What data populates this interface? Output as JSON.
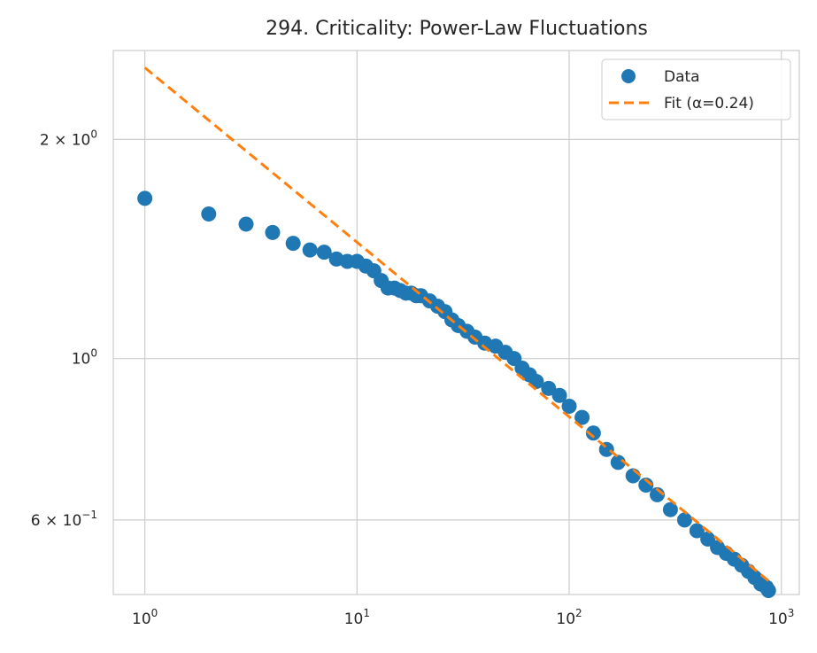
{
  "chart_data": {
    "type": "scatter",
    "title": "294. Criticality: Power-Law Fluctuations",
    "xlabel": "",
    "ylabel": "",
    "xscale": "log",
    "yscale": "log",
    "xlim": [
      0.71,
      1215
    ],
    "ylim": [
      0.474,
      2.65
    ],
    "grid": true,
    "legend_position": "top-right",
    "x_ticks": [
      {
        "value": 1,
        "base": "10",
        "exp": "0"
      },
      {
        "value": 10,
        "base": "10",
        "exp": "1"
      },
      {
        "value": 100,
        "base": "10",
        "exp": "2"
      },
      {
        "value": 1000,
        "base": "10",
        "exp": "3"
      }
    ],
    "y_ticks": [
      {
        "value": 2,
        "mant": "2",
        "exp": "0"
      },
      {
        "value": 1,
        "mant": "",
        "exp": "0"
      },
      {
        "value": 0.6,
        "mant": "6",
        "exp": "−1"
      }
    ],
    "series": [
      {
        "name": "Data",
        "kind": "markers",
        "color": "#1f77b4",
        "x": [
          1,
          2,
          3,
          4,
          5,
          6,
          7,
          8,
          9,
          10,
          11,
          12,
          13,
          14,
          15,
          16,
          17,
          18,
          19,
          20,
          22,
          24,
          26,
          28,
          30,
          33,
          36,
          40,
          45,
          50,
          55,
          60,
          65,
          70,
          80,
          90,
          100,
          115,
          130,
          150,
          170,
          200,
          230,
          260,
          300,
          350,
          400,
          450,
          500,
          550,
          600,
          650,
          700,
          750,
          800,
          850,
          870
        ],
        "y": [
          1.66,
          1.58,
          1.53,
          1.49,
          1.44,
          1.41,
          1.4,
          1.37,
          1.36,
          1.36,
          1.34,
          1.32,
          1.28,
          1.25,
          1.25,
          1.24,
          1.23,
          1.23,
          1.22,
          1.22,
          1.2,
          1.18,
          1.16,
          1.13,
          1.11,
          1.09,
          1.07,
          1.05,
          1.04,
          1.02,
          1.0,
          0.97,
          0.95,
          0.93,
          0.91,
          0.89,
          0.86,
          0.83,
          0.79,
          0.75,
          0.72,
          0.69,
          0.67,
          0.65,
          0.62,
          0.6,
          0.58,
          0.565,
          0.55,
          0.54,
          0.53,
          0.52,
          0.51,
          0.5,
          0.49,
          0.485,
          0.48
        ]
      },
      {
        "name": "Fit (α=0.24)",
        "kind": "dashed-line",
        "color": "#ff7f0e",
        "alpha": 0.24,
        "x": [
          1,
          870
        ],
        "y": [
          2.51,
          0.495
        ]
      }
    ]
  }
}
